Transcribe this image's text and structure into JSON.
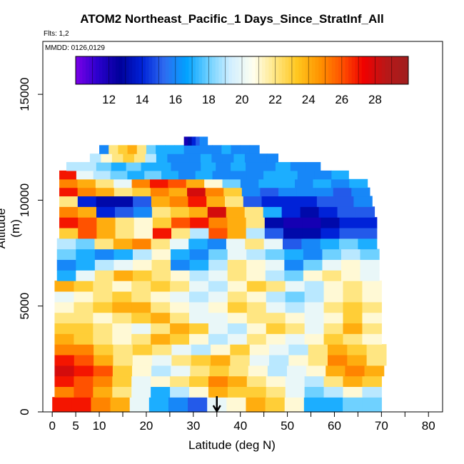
{
  "chart_data": {
    "type": "heatmap",
    "title": "ATOM2 Northeast_Pacific_1 Days_Since_StratInf_All",
    "subtitle": "Flts: 1,2",
    "annotation": "MMDD: 0126,0129",
    "xlabel": "Latitude (deg N)",
    "ylabel": "Altitude (m)",
    "xlim": [
      -2,
      83
    ],
    "ylim": [
      0,
      17500
    ],
    "x_ticks": [
      0,
      5,
      10,
      20,
      30,
      40,
      50,
      60,
      70,
      80
    ],
    "x_minor_ticks": [
      15,
      25,
      35,
      45,
      55,
      65,
      75
    ],
    "y_ticks": [
      0,
      5000,
      10000,
      15000
    ],
    "colorbar": {
      "min": 10,
      "max": 30,
      "tick_values": [
        12,
        14,
        16,
        18,
        20,
        22,
        24,
        26,
        28
      ],
      "colors": [
        "#7b00e8",
        "#2a00cc",
        "#00009a",
        "#0022d8",
        "#2e6cf0",
        "#00a2ff",
        "#6fd1ff",
        "#d2efff",
        "#fffff0",
        "#ffe682",
        "#ffc61e",
        "#ff9400",
        "#ff5200",
        "#f00000",
        "#b81818",
        "#a01e1e"
      ]
    },
    "marker": {
      "latitude": 35,
      "label": "down-arrow"
    },
    "bands": [
      {
        "alt": [
          0,
          700
        ],
        "lat": [
          0,
          70
        ],
        "values": [
          27,
          27,
          25,
          24,
          20,
          17,
          16,
          15,
          20,
          21,
          24,
          23,
          21,
          17,
          17,
          18,
          18
        ]
      },
      {
        "alt": [
          700,
          1200
        ],
        "lat": [
          0.5,
          70
        ],
        "values": [
          25,
          26,
          24,
          22,
          20,
          17,
          19,
          21,
          24,
          23,
          23,
          22,
          20,
          18,
          19,
          21,
          19
        ]
      },
      {
        "alt": [
          1200,
          1700
        ],
        "lat": [
          0.5,
          70
        ],
        "values": [
          27,
          26,
          25,
          23,
          20,
          21,
          22,
          23,
          25,
          24,
          22,
          21,
          20,
          19,
          22,
          24,
          23
        ]
      },
      {
        "alt": [
          1700,
          2200
        ],
        "lat": [
          0.5,
          70.5
        ],
        "values": [
          28,
          27,
          26,
          23,
          21,
          19,
          20,
          22,
          23,
          22,
          21,
          19,
          20,
          21,
          24,
          25,
          24
        ]
      },
      {
        "alt": [
          2200,
          2700
        ],
        "lat": [
          0.5,
          71
        ],
        "values": [
          27,
          26,
          24,
          22,
          21,
          20,
          22,
          23,
          24,
          22,
          20,
          19,
          21,
          22,
          25,
          24,
          22
        ]
      },
      {
        "alt": [
          2700,
          3200
        ],
        "lat": [
          0.5,
          71
        ],
        "values": [
          25,
          25,
          23,
          22,
          23,
          22,
          20,
          19,
          21,
          23,
          21,
          20,
          19,
          22,
          24,
          23,
          22
        ]
      },
      {
        "alt": [
          3200,
          3700
        ],
        "lat": [
          0.5,
          70
        ],
        "values": [
          24,
          23,
          22,
          21,
          22,
          24,
          23,
          21,
          19,
          20,
          22,
          21,
          20,
          21,
          23,
          22,
          21
        ]
      },
      {
        "alt": [
          3700,
          4200
        ],
        "lat": [
          0.5,
          70
        ],
        "values": [
          23,
          23,
          22,
          21,
          20,
          22,
          24,
          23,
          20,
          19,
          21,
          23,
          22,
          20,
          22,
          24,
          22
        ]
      },
      {
        "alt": [
          4200,
          4700
        ],
        "lat": [
          0.5,
          70
        ],
        "values": [
          22,
          22,
          21,
          22,
          23,
          24,
          22,
          20,
          20,
          21,
          22,
          22,
          21,
          20,
          21,
          23,
          21
        ]
      },
      {
        "alt": [
          4700,
          5200
        ],
        "lat": [
          0.5,
          70
        ],
        "values": [
          21,
          22,
          23,
          24,
          24,
          22,
          21,
          20,
          21,
          23,
          22,
          20,
          19,
          20,
          22,
          23,
          22
        ]
      },
      {
        "alt": [
          5200,
          5700
        ],
        "lat": [
          0.5,
          70
        ],
        "values": [
          20,
          21,
          22,
          23,
          22,
          21,
          20,
          19,
          20,
          22,
          21,
          19,
          18,
          19,
          21,
          22,
          21
        ]
      },
      {
        "alt": [
          5700,
          6200
        ],
        "lat": [
          0.5,
          70
        ],
        "values": [
          24,
          23,
          22,
          21,
          22,
          23,
          22,
          20,
          19,
          21,
          23,
          22,
          20,
          19,
          21,
          22,
          21
        ]
      },
      {
        "alt": [
          6200,
          6700
        ],
        "lat": [
          1,
          69.5
        ],
        "values": [
          17,
          20,
          22,
          24,
          23,
          22,
          21,
          19,
          20,
          22,
          21,
          19,
          18,
          21,
          22,
          21,
          20
        ]
      },
      {
        "alt": [
          6700,
          7200
        ],
        "lat": [
          1,
          69.5
        ],
        "values": [
          16,
          17,
          19,
          20,
          21,
          22,
          16,
          17,
          19,
          22,
          21,
          20,
          16,
          18,
          20,
          21,
          20
        ]
      },
      {
        "alt": [
          7200,
          7700
        ],
        "lat": [
          1,
          69.5
        ],
        "values": [
          18,
          17,
          16,
          17,
          19,
          21,
          17,
          16,
          18,
          20,
          19,
          18,
          17,
          16,
          18,
          19,
          18
        ]
      },
      {
        "alt": [
          7700,
          8200
        ],
        "lat": [
          1,
          69
        ],
        "values": [
          19,
          18,
          22,
          24,
          25,
          22,
          20,
          17,
          16,
          20,
          22,
          20,
          15,
          16,
          17,
          18,
          17
        ]
      },
      {
        "alt": [
          8200,
          8700
        ],
        "lat": [
          1.5,
          69
        ],
        "values": [
          23,
          26,
          24,
          22,
          21,
          27,
          22,
          19,
          26,
          24,
          19,
          15,
          13,
          13,
          14,
          15,
          15
        ]
      },
      {
        "alt": [
          8700,
          9200
        ],
        "lat": [
          1.5,
          69
        ],
        "values": [
          27,
          26,
          24,
          22,
          21,
          23,
          26,
          27,
          25,
          24,
          22,
          13,
          12,
          12,
          13,
          14,
          14
        ]
      },
      {
        "alt": [
          9200,
          9700
        ],
        "lat": [
          1.5,
          68.5
        ],
        "values": [
          25,
          24,
          14,
          15,
          16,
          22,
          23,
          24,
          28,
          24,
          22,
          17,
          14,
          13,
          14,
          15,
          15
        ]
      },
      {
        "alt": [
          9700,
          10200
        ],
        "lat": [
          1.5,
          68
        ],
        "values": [
          22,
          14,
          13,
          13,
          15,
          24,
          25,
          27,
          24,
          22,
          15,
          14,
          14,
          14,
          15,
          15,
          16
        ]
      },
      {
        "alt": [
          10200,
          10600
        ],
        "lat": [
          1.5,
          67.5
        ],
        "values": [
          27,
          25,
          24,
          22,
          23,
          25,
          24,
          28,
          25,
          23,
          16,
          15,
          16,
          16,
          16,
          15,
          16
        ]
      },
      {
        "alt": [
          10600,
          11000
        ],
        "lat": [
          1.5,
          67
        ],
        "values": [
          25,
          24,
          22,
          20,
          25,
          27,
          26,
          24,
          21,
          18,
          16,
          17,
          17,
          16,
          17,
          16,
          17
        ]
      },
      {
        "alt": [
          11000,
          11400
        ],
        "lat": [
          1.5,
          63
        ],
        "values": [
          27,
          20,
          19,
          18,
          17,
          18,
          17,
          16,
          17,
          16,
          16,
          16,
          17,
          17,
          16,
          16,
          17
        ]
      },
      {
        "alt": [
          11400,
          11800
        ],
        "lat": [
          3,
          57
        ],
        "values": [
          19,
          19,
          18,
          17,
          18,
          17,
          17,
          16,
          16,
          17,
          16,
          17,
          16,
          16,
          17,
          16,
          16
        ]
      },
      {
        "alt": [
          11800,
          12200
        ],
        "lat": [
          8,
          48
        ],
        "values": [
          19,
          21,
          22,
          23,
          22,
          19,
          17,
          16,
          16,
          16,
          17,
          16,
          16,
          17,
          16,
          16,
          16
        ]
      },
      {
        "alt": [
          12200,
          12600
        ],
        "lat": [
          10,
          44
        ],
        "values": [
          16,
          22,
          23,
          24,
          22,
          18,
          17,
          17,
          17,
          16,
          16,
          16,
          16,
          17,
          16,
          16,
          16
        ]
      },
      {
        "alt": [
          12600,
          13000
        ],
        "lat": [
          28,
          33
        ],
        "values": [
          12,
          13,
          14,
          15,
          16,
          16
        ]
      }
    ]
  }
}
